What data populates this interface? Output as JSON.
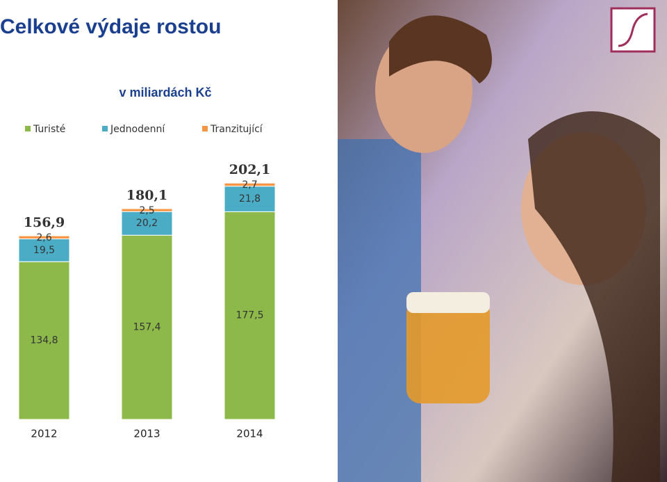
{
  "chart_data": {
    "type": "stacked-bar",
    "title": "Celkové výdaje rostou",
    "subtitle": "v miliardách Kč",
    "categories": [
      "2012",
      "2013",
      "2014"
    ],
    "series": [
      {
        "name": "Turisté",
        "color": "#8db84a",
        "values": [
          134.8,
          157.4,
          177.5
        ],
        "value_labels": [
          "134,8",
          "157,4",
          "177,5"
        ]
      },
      {
        "name": "Jednodenní",
        "color": "#4bacc6",
        "values": [
          19.5,
          20.2,
          21.8
        ],
        "value_labels": [
          "19,5",
          "20,2",
          "21,8"
        ]
      },
      {
        "name": "Tranzitující",
        "color": "#f79646",
        "values": [
          2.6,
          2.5,
          2.7
        ],
        "value_labels": [
          "2,6",
          "2,5",
          "2,7"
        ]
      }
    ],
    "totals": {
      "values": [
        156.9,
        180.1,
        202.1
      ],
      "value_labels": [
        "156,9",
        "180,1",
        "202,1"
      ]
    }
  }
}
